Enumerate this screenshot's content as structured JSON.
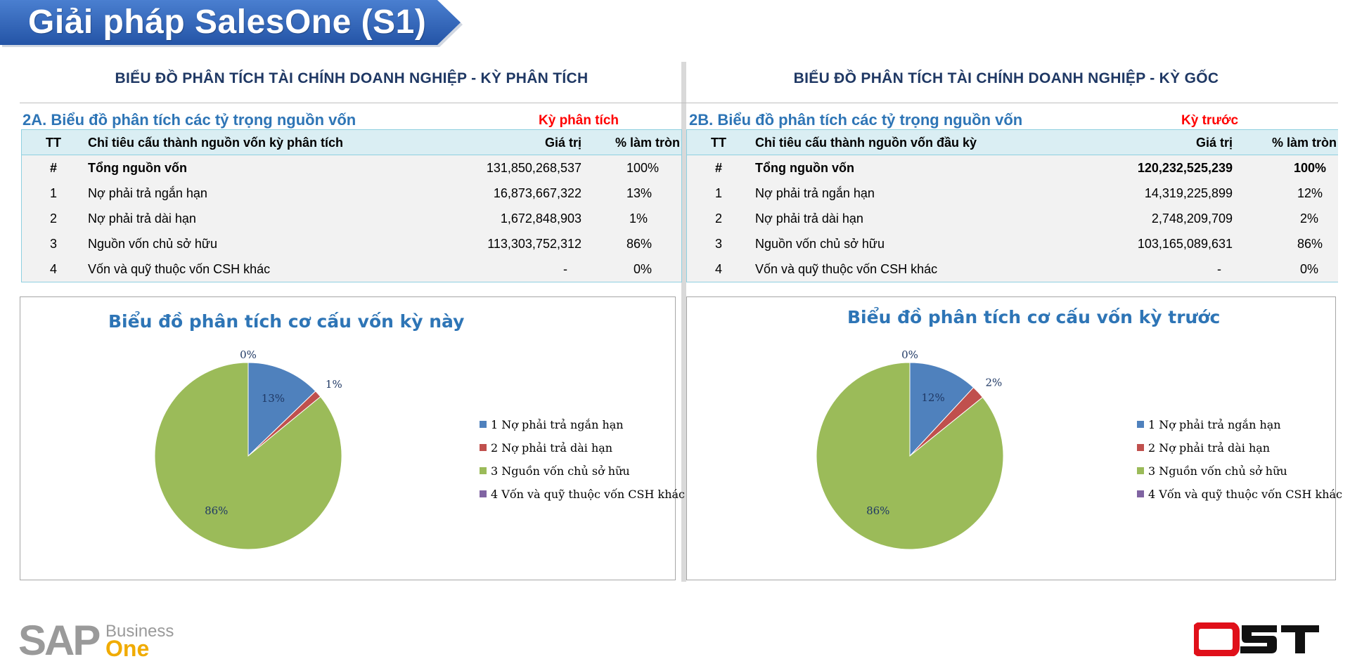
{
  "banner": {
    "title": "Giải pháp SalesOne (S1)"
  },
  "colors": {
    "blue": "#4f81bd",
    "red": "#c0504d",
    "green": "#9bbb59",
    "purple": "#8064a2",
    "heading_blue": "#2e75b6",
    "title_navy": "#1f3864"
  },
  "left": {
    "panel_title": "BIỂU ĐỒ PHÂN TÍCH TÀI CHÍNH DOANH NGHIỆP - KỲ PHÂN TÍCH",
    "section_heading": "2A. Biểu đồ phân tích các tỷ trọng nguồn vốn",
    "period_label": "Kỳ phân tích",
    "table": {
      "headers": {
        "tt": "TT",
        "name": "Chỉ tiêu cấu thành nguồn vốn kỳ phân tích",
        "value": "Giá trị",
        "pct": "% làm tròn"
      },
      "rows": [
        {
          "tt": "#",
          "name": "Tổng nguồn vốn",
          "value": "131,850,268,537",
          "pct": "100%"
        },
        {
          "tt": "1",
          "name": "Nợ phải trả ngắn hạn",
          "value": "16,873,667,322",
          "pct": "13%"
        },
        {
          "tt": "2",
          "name": "Nợ phải trả dài hạn",
          "value": "1,672,848,903",
          "pct": "1%"
        },
        {
          "tt": "3",
          "name": "Nguồn vốn chủ sở hữu",
          "value": "113,303,752,312",
          "pct": "86%"
        },
        {
          "tt": "4",
          "name": "Vốn và quỹ thuộc vốn CSH khác",
          "value": "-",
          "pct": "0%"
        }
      ]
    }
  },
  "right": {
    "panel_title": "BIỂU ĐỒ PHÂN TÍCH TÀI CHÍNH DOANH NGHIỆP - KỲ GỐC",
    "section_heading": "2B. Biểu đồ phân tích các tỷ trọng nguồn vốn",
    "period_label": "Kỳ trước",
    "table": {
      "headers": {
        "tt": "TT",
        "name": "Chỉ tiêu cấu thành nguồn vốn đầu kỳ",
        "value": "Giá trị",
        "pct": "% làm tròn"
      },
      "rows": [
        {
          "tt": "#",
          "name": "Tổng nguồn vốn",
          "value": "120,232,525,239",
          "pct": "100%"
        },
        {
          "tt": "1",
          "name": "Nợ phải trả ngắn hạn",
          "value": "14,319,225,899",
          "pct": "12%"
        },
        {
          "tt": "2",
          "name": "Nợ phải trả dài hạn",
          "value": "2,748,209,709",
          "pct": "2%"
        },
        {
          "tt": "3",
          "name": "Nguồn vốn chủ sở hữu",
          "value": "103,165,089,631",
          "pct": "86%"
        },
        {
          "tt": "4",
          "name": "Vốn và quỹ thuộc vốn CSH khác",
          "value": "-",
          "pct": "0%"
        }
      ]
    }
  },
  "chart_data": [
    {
      "type": "pie",
      "title": "Biểu đồ phân tích cơ cấu vốn kỳ này",
      "categories": [
        "1 Nợ phải trả ngắn hạn",
        "2 Nợ phải trả dài hạn",
        "3 Nguồn vốn chủ sở hữu",
        "4 Vốn và quỹ thuộc vốn CSH khác"
      ],
      "values": [
        16873667322,
        1672848903,
        113303752312,
        0
      ],
      "data_labels": [
        "13%",
        "1%",
        "86%",
        "0%"
      ],
      "colors": [
        "#4f81bd",
        "#c0504d",
        "#9bbb59",
        "#8064a2"
      ],
      "legend": "right"
    },
    {
      "type": "pie",
      "title": "Biểu đồ phân tích cơ cấu vốn kỳ trước",
      "categories": [
        "1 Nợ phải trả ngắn hạn",
        "2 Nợ phải trả dài hạn",
        "3 Nguồn vốn chủ sở hữu",
        "4 Vốn và quỹ thuộc vốn CSH khác"
      ],
      "values": [
        14319225899,
        2748209709,
        103165089631,
        0
      ],
      "data_labels": [
        "12%",
        "2%",
        "86%",
        "0%"
      ],
      "colors": [
        "#4f81bd",
        "#c0504d",
        "#9bbb59",
        "#8064a2"
      ],
      "legend": "right"
    }
  ],
  "footer": {
    "sap_logo": "SAP Business One",
    "ost_logo": "OST"
  }
}
